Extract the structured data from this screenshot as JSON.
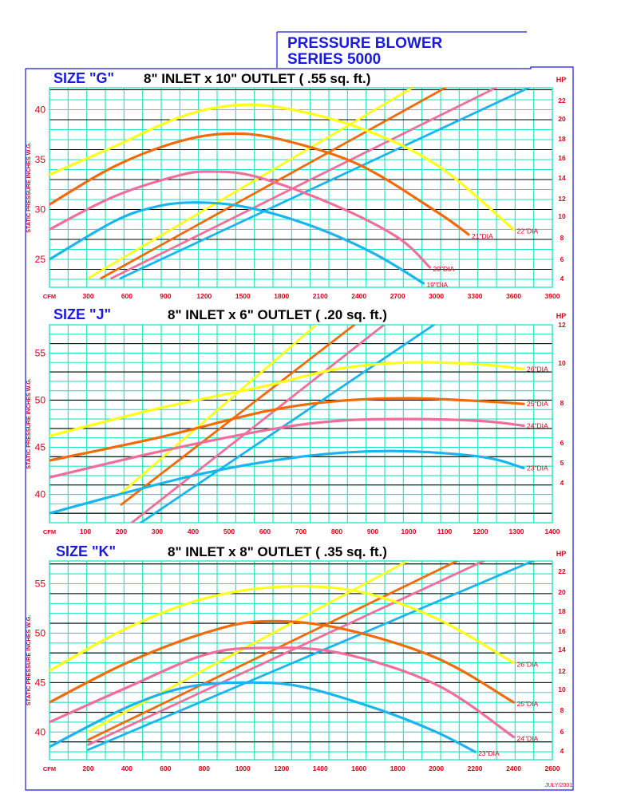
{
  "header": {
    "line1": "PRESSURE BLOWER",
    "line2": "SERIES 5000"
  },
  "date_stamp": "JULY/2001",
  "colors": {
    "frame": "#1a1adf",
    "grid": "#19e6c0",
    "major_grid": "#000000",
    "labels": "#e0001a",
    "yellow": "#ffff1a",
    "orange": "#f26b0a",
    "pink": "#ef6f9a",
    "blue": "#1ab4ee"
  },
  "chart_data": [
    {
      "type": "line",
      "size_label": "SIZE \"G\"",
      "title": "8\" INLET x 10\" OUTLET   ( .55 sq. ft.)",
      "ylabel": "STATIC PRESSURE INCHES W.G.",
      "x_axis_label": "CFM",
      "x_ticks": [
        "300",
        "600",
        "900",
        "1200",
        "1500",
        "1800",
        "2100",
        "2400",
        "2700",
        "3000",
        "3300",
        "3600",
        "3900"
      ],
      "xlim": [
        0,
        3900
      ],
      "ylim": [
        22.2,
        42.2
      ],
      "y_ticks": [
        "25",
        "30",
        "35",
        "40"
      ],
      "right_axis_label": "HP",
      "hp_ticks": [
        "4",
        "6",
        "8",
        "10",
        "12",
        "14",
        "16",
        "18",
        "20",
        "22"
      ],
      "hp_lim": [
        3,
        23
      ],
      "series": [
        {
          "name": "22\"DIA",
          "color": "yellow",
          "values": [
            [
              0,
              33.5
            ],
            [
              500,
              36.3
            ],
            [
              1000,
              39.2
            ],
            [
              1400,
              40.4
            ],
            [
              1800,
              40.2
            ],
            [
              2400,
              38.2
            ],
            [
              3000,
              34.5
            ],
            [
              3600,
              28.0
            ]
          ],
          "hp": [
            [
              300,
              3.9
            ],
            [
              2880,
              23.5
            ]
          ]
        },
        {
          "name": "21\"DIA",
          "color": "orange",
          "values": [
            [
              0,
              30.5
            ],
            [
              500,
              34.3
            ],
            [
              1000,
              36.8
            ],
            [
              1400,
              37.6
            ],
            [
              1800,
              37.0
            ],
            [
              2400,
              34.5
            ],
            [
              3000,
              29.8
            ],
            [
              3250,
              27.5
            ]
          ],
          "hp": [
            [
              400,
              3.9
            ],
            [
              3140,
              23.5
            ]
          ]
        },
        {
          "name": "20\"DIA",
          "color": "pink",
          "values": [
            [
              0,
              28.0
            ],
            [
              500,
              31.3
            ],
            [
              1000,
              33.4
            ],
            [
              1250,
              33.8
            ],
            [
              1600,
              33.3
            ],
            [
              2200,
              30.5
            ],
            [
              2700,
              27.2
            ],
            [
              2950,
              24.2
            ]
          ],
          "hp": [
            [
              480,
              3.9
            ],
            [
              3540,
              23.5
            ]
          ]
        },
        {
          "name": "19\"DIA",
          "color": "blue",
          "values": [
            [
              0,
              25.0
            ],
            [
              500,
              28.8
            ],
            [
              800,
              30.2
            ],
            [
              1100,
              30.7
            ],
            [
              1500,
              30.3
            ],
            [
              2000,
              28.5
            ],
            [
              2500,
              25.7
            ],
            [
              2900,
              22.6
            ]
          ],
          "hp": [
            [
              550,
              3.9
            ],
            [
              3800,
              23.5
            ]
          ]
        }
      ]
    },
    {
      "type": "line",
      "size_label": "SIZE \"J\"",
      "title": "8\" INLET x 6\" OUTLET   ( .20 sq. ft.)",
      "ylabel": "STATIC PRESSURE INCHES W.G.",
      "x_axis_label": "CFM",
      "x_ticks": [
        "100",
        "200",
        "300",
        "400",
        "500",
        "600",
        "700",
        "800",
        "900",
        "1000",
        "1100",
        "1200",
        "1300",
        "1400"
      ],
      "xlim": [
        0,
        1400
      ],
      "ylim": [
        37,
        58
      ],
      "y_ticks": [
        "40",
        "45",
        "50",
        "55"
      ],
      "right_axis_label": "HP",
      "hp_ticks": [
        "4",
        "5",
        "6",
        "8",
        "10",
        "12"
      ],
      "hp_lim": [
        0,
        12
      ],
      "series": [
        {
          "name": "26\"DIA",
          "color": "yellow",
          "values": [
            [
              0,
              46.2
            ],
            [
              300,
              49.1
            ],
            [
              600,
              51.5
            ],
            [
              800,
              53.3
            ],
            [
              1000,
              54.0
            ],
            [
              1200,
              53.8
            ],
            [
              1320,
              53.3
            ]
          ],
          "hp": [
            [
              200,
              1.8
            ],
            [
              860,
              14.2
            ]
          ]
        },
        {
          "name": "25\"DIA",
          "color": "orange",
          "values": [
            [
              0,
              43.6
            ],
            [
              300,
              46.0
            ],
            [
              600,
              48.8
            ],
            [
              800,
              49.9
            ],
            [
              1000,
              50.2
            ],
            [
              1200,
              49.9
            ],
            [
              1320,
              49.6
            ]
          ],
          "hp": [
            [
              200,
              1.1
            ],
            [
              980,
              14.2
            ]
          ]
        },
        {
          "name": "24\"DIA",
          "color": "pink",
          "values": [
            [
              0,
              41.8
            ],
            [
              300,
              44.5
            ],
            [
              600,
              46.8
            ],
            [
              800,
              47.8
            ],
            [
              1000,
              48.0
            ],
            [
              1200,
              47.8
            ],
            [
              1320,
              47.3
            ]
          ],
          "hp": [
            [
              200,
              -0.5
            ],
            [
              1060,
              14.2
            ]
          ]
        },
        {
          "name": "23\"DIA",
          "color": "blue",
          "values": [
            [
              0,
              38.0
            ],
            [
              400,
              42.0
            ],
            [
              700,
              44.0
            ],
            [
              950,
              44.6
            ],
            [
              1200,
              44.0
            ],
            [
              1320,
              42.8
            ]
          ],
          "hp": [
            [
              200,
              -0.8
            ],
            [
              1220,
              14.2
            ]
          ]
        }
      ]
    },
    {
      "type": "line",
      "size_label": "SIZE \"K\"",
      "title": "8\" INLET x 8\" OUTLET   ( .35 sq. ft.)",
      "ylabel": "STATIC PRESSURE INCHES W.G.",
      "x_axis_label": "CFM",
      "x_ticks": [
        "200",
        "400",
        "600",
        "800",
        "1000",
        "1200",
        "1400",
        "1600",
        "1800",
        "2000",
        "2200",
        "2400",
        "2600"
      ],
      "xlim": [
        0,
        2600
      ],
      "ylim": [
        37.2,
        57.3
      ],
      "y_ticks": [
        "40",
        "45",
        "50",
        "55"
      ],
      "right_axis_label": "HP",
      "hp_ticks": [
        "4",
        "6",
        "8",
        "10",
        "12",
        "14",
        "16",
        "18",
        "20",
        "22"
      ],
      "hp_lim": [
        3,
        23
      ],
      "series": [
        {
          "name": "26\"DIA",
          "color": "yellow",
          "values": [
            [
              0,
              46.2
            ],
            [
              400,
              50.5
            ],
            [
              800,
              53.5
            ],
            [
              1200,
              54.7
            ],
            [
              1600,
              54.2
            ],
            [
              2000,
              51.5
            ],
            [
              2400,
              47.0
            ]
          ],
          "hp": [
            [
              200,
              5.8
            ],
            [
              1900,
              23.5
            ]
          ]
        },
        {
          "name": "25\"DIA",
          "color": "orange",
          "values": [
            [
              0,
              43.0
            ],
            [
              400,
              47.0
            ],
            [
              800,
              50.0
            ],
            [
              1100,
              51.2
            ],
            [
              1500,
              50.5
            ],
            [
              2000,
              47.5
            ],
            [
              2400,
              43.0
            ]
          ],
          "hp": [
            [
              200,
              5.0
            ],
            [
              2160,
              23.5
            ]
          ]
        },
        {
          "name": "24\"DIA",
          "color": "pink",
          "values": [
            [
              0,
              41.0
            ],
            [
              400,
              44.5
            ],
            [
              800,
              47.8
            ],
            [
              1100,
              48.5
            ],
            [
              1500,
              48.0
            ],
            [
              2000,
              44.8
            ],
            [
              2400,
              39.5
            ]
          ],
          "hp": [
            [
              200,
              4.5
            ],
            [
              2300,
              23.5
            ]
          ]
        },
        {
          "name": "23\"DIA",
          "color": "blue",
          "values": [
            [
              0,
              38.5
            ],
            [
              400,
              42.5
            ],
            [
              700,
              44.5
            ],
            [
              1000,
              45.0
            ],
            [
              1300,
              44.6
            ],
            [
              1700,
              42.3
            ],
            [
              2000,
              40.0
            ],
            [
              2200,
              38.0
            ]
          ],
          "hp": [
            [
              200,
              4.0
            ],
            [
              2560,
              23.5
            ]
          ]
        }
      ]
    }
  ]
}
